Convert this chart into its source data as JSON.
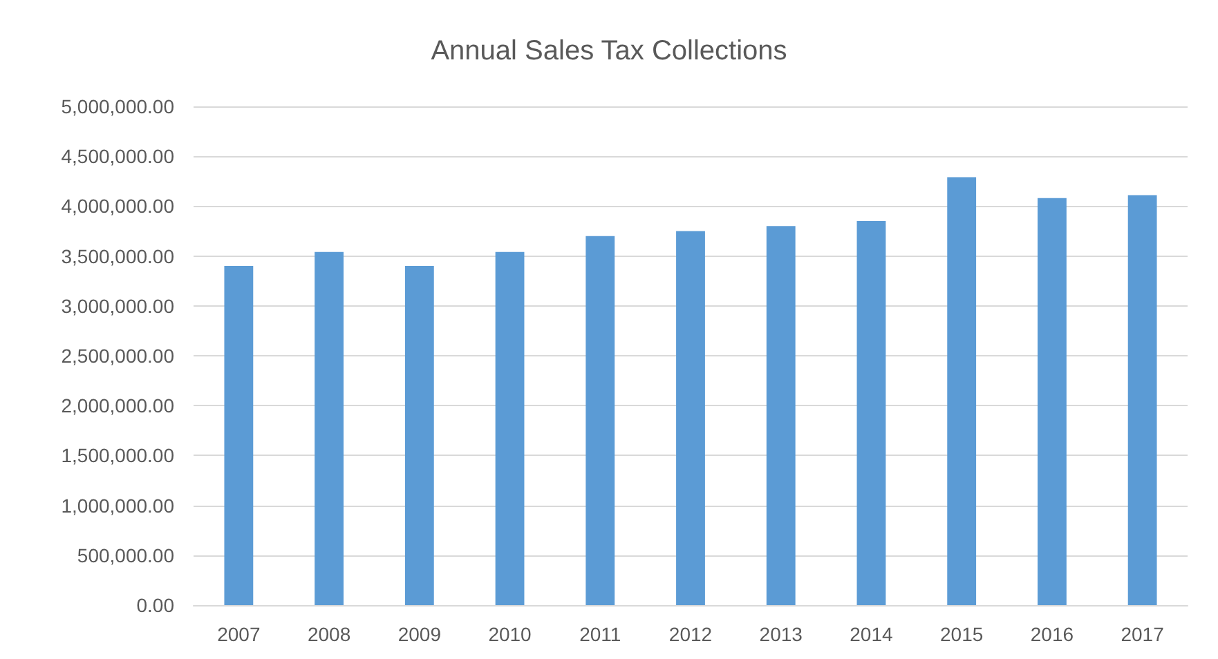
{
  "chart_data": {
    "type": "bar",
    "title": "Annual Sales Tax Collections",
    "categories": [
      "2007",
      "2008",
      "2009",
      "2010",
      "2011",
      "2012",
      "2013",
      "2014",
      "2015",
      "2016",
      "2017"
    ],
    "values": [
      3400000,
      3540000,
      3400000,
      3540000,
      3700000,
      3750000,
      3800000,
      3850000,
      4290000,
      4080000,
      4110000
    ],
    "color": "#5b9bd5",
    "ylim": [
      0,
      5000000
    ],
    "yticks": [
      {
        "value": 0,
        "label": "0.00"
      },
      {
        "value": 500000,
        "label": "500,000.00"
      },
      {
        "value": 1000000,
        "label": "1,000,000.00"
      },
      {
        "value": 1500000,
        "label": "1,500,000.00"
      },
      {
        "value": 2000000,
        "label": "2,000,000.00"
      },
      {
        "value": 2500000,
        "label": "2,500,000.00"
      },
      {
        "value": 3000000,
        "label": "3,000,000.00"
      },
      {
        "value": 3500000,
        "label": "3,500,000.00"
      },
      {
        "value": 4000000,
        "label": "4,000,000.00"
      },
      {
        "value": 4500000,
        "label": "4,500,000.00"
      },
      {
        "value": 5000000,
        "label": "5,000,000.00"
      }
    ],
    "grid": "y"
  }
}
